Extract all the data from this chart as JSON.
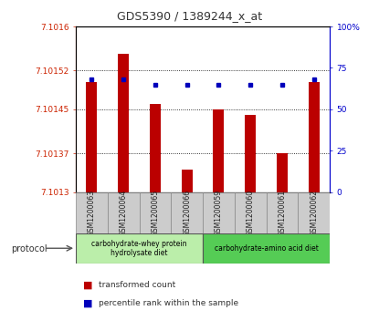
{
  "title": "GDS5390 / 1389244_x_at",
  "samples": [
    "GSM1200063",
    "GSM1200064",
    "GSM1200065",
    "GSM1200066",
    "GSM1200059",
    "GSM1200060",
    "GSM1200061",
    "GSM1200062"
  ],
  "transformed_count": [
    7.1015,
    7.10155,
    7.10146,
    7.10134,
    7.10145,
    7.10144,
    7.10137,
    7.1015
  ],
  "percentile_rank": [
    68,
    68,
    65,
    65,
    65,
    65,
    65,
    68
  ],
  "ylim_left": [
    7.1013,
    7.1016
  ],
  "ylim_right": [
    0,
    100
  ],
  "yticks_left": [
    7.1013,
    7.10137,
    7.10145,
    7.10152,
    7.1016
  ],
  "ytick_labels_left": [
    "7.1013",
    "7.10137",
    "7.10145",
    "7.10152",
    "7.1016"
  ],
  "yticks_right": [
    0,
    25,
    50,
    75,
    100
  ],
  "ytick_labels_right": [
    "0",
    "25",
    "50",
    "75",
    "100%"
  ],
  "bar_color": "#bb0000",
  "dot_color": "#0000bb",
  "grid_color": "#000000",
  "bg_color": "#ffffff",
  "plot_bg": "#ffffff",
  "protocol_groups": [
    {
      "label": "carbohydrate-whey protein\nhydrolysate diet",
      "sample_indices": [
        0,
        1,
        2,
        3
      ],
      "color": "#bbeeaa"
    },
    {
      "label": "carbohydrate-amino acid diet",
      "sample_indices": [
        4,
        5,
        6,
        7
      ],
      "color": "#55cc55"
    }
  ],
  "protocol_label": "protocol",
  "title_color": "#333333",
  "left_axis_color": "#cc2200",
  "right_axis_color": "#0000cc",
  "sample_box_color": "#cccccc",
  "legend_bar_label": "transformed count",
  "legend_dot_label": "percentile rank within the sample"
}
